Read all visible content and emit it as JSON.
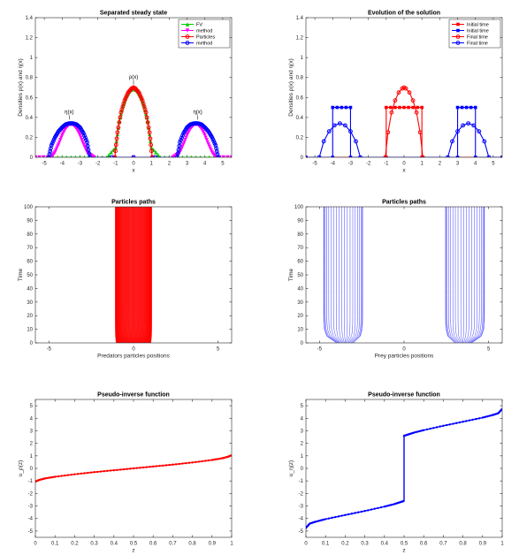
{
  "chart_data": [
    {
      "type": "line",
      "title": "Separated steady state",
      "xlabel": "x",
      "ylabel": "Densities ρ(x) and η(x)",
      "xlim": [
        -5.5,
        5.5
      ],
      "ylim": [
        0,
        1.4
      ],
      "xticks": [
        -5,
        -4,
        -3,
        -2,
        -1,
        0,
        1,
        2,
        3,
        4,
        5
      ],
      "yticks": [
        0,
        0.2,
        0.4,
        0.6,
        0.8,
        1,
        1.2,
        1.4
      ],
      "legend_position": "top-right",
      "legend": [
        "FV",
        "method",
        "Particles",
        "method"
      ],
      "annotations": [
        {
          "text": "ρ(x)",
          "x": 0.0,
          "y": 0.79
        },
        {
          "text": "η(x)",
          "x": -3.6,
          "y": 0.44
        },
        {
          "text": "η(x)",
          "x": 3.6,
          "y": 0.44
        }
      ],
      "series": [
        {
          "name": "FV",
          "color": "#00cc00",
          "marker": "triangle-up",
          "kind": "densities-fv-rho",
          "x": [
            -5.5,
            -4.5,
            -3.5,
            -2.5,
            -1.5,
            -1.0,
            -0.8,
            -0.6,
            -0.4,
            -0.2,
            0.0,
            0.2,
            0.4,
            0.6,
            0.8,
            1.0,
            1.5,
            2.5,
            3.5,
            4.5,
            5.5
          ],
          "y": [
            0,
            0,
            0,
            0,
            0,
            0.1,
            0.36,
            0.51,
            0.61,
            0.67,
            0.69,
            0.67,
            0.61,
            0.51,
            0.36,
            0.1,
            0,
            0,
            0,
            0,
            0
          ]
        },
        {
          "name": "method",
          "color": "#ff00ff",
          "marker": "triangle-down",
          "kind": "densities-fv-eta",
          "x": [
            -5.5,
            -4.6,
            -4.4,
            -4.2,
            -4.0,
            -3.8,
            -3.6,
            -3.4,
            -3.2,
            -3.0,
            -2.8,
            -2.6,
            -2.2,
            2.2,
            2.6,
            2.8,
            3.0,
            3.2,
            3.4,
            3.6,
            3.8,
            4.0,
            4.2,
            4.4,
            4.6,
            5.5
          ],
          "y": [
            0,
            0,
            0.05,
            0.13,
            0.22,
            0.29,
            0.33,
            0.33,
            0.29,
            0.22,
            0.13,
            0.05,
            0,
            0,
            0.05,
            0.13,
            0.22,
            0.29,
            0.33,
            0.33,
            0.29,
            0.22,
            0.13,
            0.05,
            0,
            0
          ]
        },
        {
          "name": "Particles",
          "color": "#ff0000",
          "marker": "circle",
          "kind": "densities-particles-rho",
          "x": [
            -1.05,
            -0.9,
            -0.7,
            -0.5,
            -0.3,
            -0.1,
            0.0,
            0.1,
            0.3,
            0.5,
            0.7,
            0.9,
            1.05
          ],
          "y": [
            0,
            0.25,
            0.45,
            0.57,
            0.65,
            0.69,
            0.7,
            0.69,
            0.65,
            0.57,
            0.45,
            0.25,
            0
          ]
        },
        {
          "name": "method",
          "color": "#0000ff",
          "marker": "circle",
          "kind": "densities-particles-eta",
          "x": [
            -4.75,
            -4.6,
            -4.4,
            -4.2,
            -4.0,
            -3.8,
            -3.6,
            -3.4,
            -3.2,
            -3.0,
            -2.8,
            -2.6,
            -2.45,
            2.45,
            2.6,
            2.8,
            3.0,
            3.2,
            3.4,
            3.6,
            3.8,
            4.0,
            4.2,
            4.4,
            4.6,
            4.75
          ],
          "y": [
            0,
            0.12,
            0.2,
            0.26,
            0.3,
            0.33,
            0.34,
            0.34,
            0.33,
            0.3,
            0.24,
            0.15,
            0,
            0,
            0.15,
            0.24,
            0.3,
            0.33,
            0.34,
            0.34,
            0.33,
            0.3,
            0.26,
            0.2,
            0.12,
            0
          ]
        }
      ]
    },
    {
      "type": "line",
      "title": "Evolution of the solution",
      "xlabel": "x",
      "ylabel": "Densities ρ(x) and η(x)",
      "xlim": [
        -5.5,
        5.5
      ],
      "ylim": [
        0,
        1.4
      ],
      "xticks": [
        -5,
        -4,
        -3,
        -2,
        -1,
        0,
        1,
        2,
        3,
        4,
        5
      ],
      "yticks": [
        0,
        0.2,
        0.4,
        0.6,
        0.8,
        1,
        1.2,
        1.4
      ],
      "legend_position": "top-right",
      "legend": [
        "Initial time",
        "Initial time",
        "Final time",
        "Final time"
      ],
      "series": [
        {
          "name": "Initial time",
          "color": "#ff0000",
          "marker": "square",
          "kind": "evo-init-rho",
          "x": [
            -5.5,
            -1.0,
            -1.0,
            -0.75,
            -0.5,
            -0.25,
            0.0,
            0.25,
            0.5,
            0.75,
            1.0,
            1.0,
            5.5
          ],
          "y": [
            0,
            0,
            0.5,
            0.5,
            0.5,
            0.5,
            0.5,
            0.5,
            0.5,
            0.5,
            0.5,
            0,
            0
          ]
        },
        {
          "name": "Initial time",
          "color": "#0000ff",
          "marker": "square",
          "kind": "evo-init-eta",
          "x": [
            -5.5,
            -4.0,
            -4.0,
            -3.75,
            -3.5,
            -3.25,
            -3.0,
            -3.0,
            3.0,
            3.0,
            3.25,
            3.5,
            3.75,
            4.0,
            4.0,
            5.5
          ],
          "y": [
            0,
            0,
            0.5,
            0.5,
            0.5,
            0.5,
            0.5,
            0,
            0,
            0.5,
            0.5,
            0.5,
            0.5,
            0.5,
            0,
            0
          ]
        },
        {
          "name": "Final time",
          "color": "#ff0000",
          "marker": "circle",
          "kind": "evo-final-rho",
          "x": [
            -1.05,
            -0.9,
            -0.7,
            -0.5,
            -0.3,
            -0.1,
            0.0,
            0.1,
            0.3,
            0.5,
            0.7,
            0.9,
            1.05
          ],
          "y": [
            0,
            0.25,
            0.45,
            0.57,
            0.65,
            0.69,
            0.7,
            0.69,
            0.65,
            0.57,
            0.45,
            0.25,
            0
          ]
        },
        {
          "name": "Final time",
          "color": "#0000ff",
          "marker": "circle",
          "kind": "evo-final-eta",
          "x": [
            -4.75,
            -4.5,
            -4.2,
            -3.9,
            -3.6,
            -3.3,
            -3.0,
            -2.7,
            -2.45,
            2.45,
            2.7,
            3.0,
            3.3,
            3.6,
            3.9,
            4.2,
            4.5,
            4.75
          ],
          "y": [
            0,
            0.16,
            0.26,
            0.32,
            0.34,
            0.32,
            0.26,
            0.16,
            0,
            0,
            0.16,
            0.26,
            0.32,
            0.34,
            0.32,
            0.26,
            0.16,
            0
          ]
        }
      ]
    },
    {
      "type": "line",
      "title": "Particles paths",
      "xlabel": "Predators particles positions",
      "ylabel": "Time",
      "xlim": [
        -5.8,
        5.8
      ],
      "ylim": [
        0,
        100
      ],
      "xticks": [
        -5,
        0,
        5
      ],
      "yticks": [
        0,
        10,
        20,
        30,
        40,
        50,
        60,
        70,
        80,
        90,
        100
      ],
      "series": [
        {
          "name": "",
          "color": "#ff0000",
          "kind": "paths-predators",
          "x_initial": [
            -1.0,
            1.0
          ],
          "x_final": [
            -1.05,
            1.05
          ],
          "n_paths": 40
        }
      ]
    },
    {
      "type": "line",
      "title": "Particles paths",
      "xlabel": "Prey particles positions",
      "ylabel": "Time",
      "xlim": [
        -5.8,
        5.8
      ],
      "ylim": [
        0,
        100
      ],
      "xticks": [
        -5,
        0,
        5
      ],
      "yticks": [
        0,
        10,
        20,
        30,
        40,
        50,
        60,
        70,
        80,
        90,
        100
      ],
      "series": [
        {
          "name": "",
          "color": "#0000ff",
          "kind": "paths-prey",
          "groups": [
            {
              "x_initial": [
                -4.0,
                -3.0
              ],
              "x_final": [
                -4.75,
                -2.45
              ]
            },
            {
              "x_initial": [
                3.0,
                4.0
              ],
              "x_final": [
                2.45,
                4.75
              ]
            }
          ],
          "n_paths": 20
        }
      ]
    },
    {
      "type": "line",
      "title": "Pseudo-inverse function",
      "xlabel": "z",
      "ylabel": "u_ρ(z)",
      "xlim": [
        0,
        1
      ],
      "ylim": [
        -5.5,
        5.5
      ],
      "xticks": [
        0,
        0.1,
        0.2,
        0.3,
        0.4,
        0.5,
        0.6,
        0.7,
        0.8,
        0.9,
        1
      ],
      "yticks": [
        -5,
        -4,
        -3,
        -2,
        -1,
        0,
        1,
        2,
        3,
        4,
        5
      ],
      "series": [
        {
          "name": "",
          "color": "#ff0000",
          "marker": "dot",
          "x": [
            0,
            0.02,
            0.05,
            0.1,
            0.2,
            0.3,
            0.4,
            0.5,
            0.6,
            0.7,
            0.8,
            0.9,
            0.95,
            0.98,
            1.0
          ],
          "y": [
            -1.05,
            -0.92,
            -0.8,
            -0.67,
            -0.47,
            -0.3,
            -0.15,
            0.0,
            0.15,
            0.3,
            0.47,
            0.67,
            0.8,
            0.92,
            1.05
          ]
        }
      ]
    },
    {
      "type": "line",
      "title": "Pseudo-inverse function",
      "xlabel": "z",
      "ylabel": "u_η(z)",
      "xlim": [
        0,
        1
      ],
      "ylim": [
        -5.5,
        5.5
      ],
      "xticks": [
        0,
        0.1,
        0.2,
        0.3,
        0.4,
        0.5,
        0.6,
        0.7,
        0.8,
        0.9,
        1
      ],
      "yticks": [
        -5,
        -4,
        -3,
        -2,
        -1,
        0,
        1,
        2,
        3,
        4,
        5
      ],
      "series": [
        {
          "name": "",
          "color": "#0000ff",
          "marker": "dot",
          "x": [
            0,
            0.02,
            0.05,
            0.1,
            0.2,
            0.3,
            0.4,
            0.45,
            0.48,
            0.5,
            0.5,
            0.52,
            0.55,
            0.6,
            0.7,
            0.8,
            0.9,
            0.95,
            0.98,
            1.0
          ],
          "y": [
            -4.75,
            -4.4,
            -4.25,
            -4.05,
            -3.72,
            -3.4,
            -3.05,
            -2.85,
            -2.7,
            -2.6,
            2.6,
            2.7,
            2.85,
            3.05,
            3.4,
            3.72,
            4.05,
            4.25,
            4.4,
            4.75
          ]
        }
      ]
    }
  ]
}
